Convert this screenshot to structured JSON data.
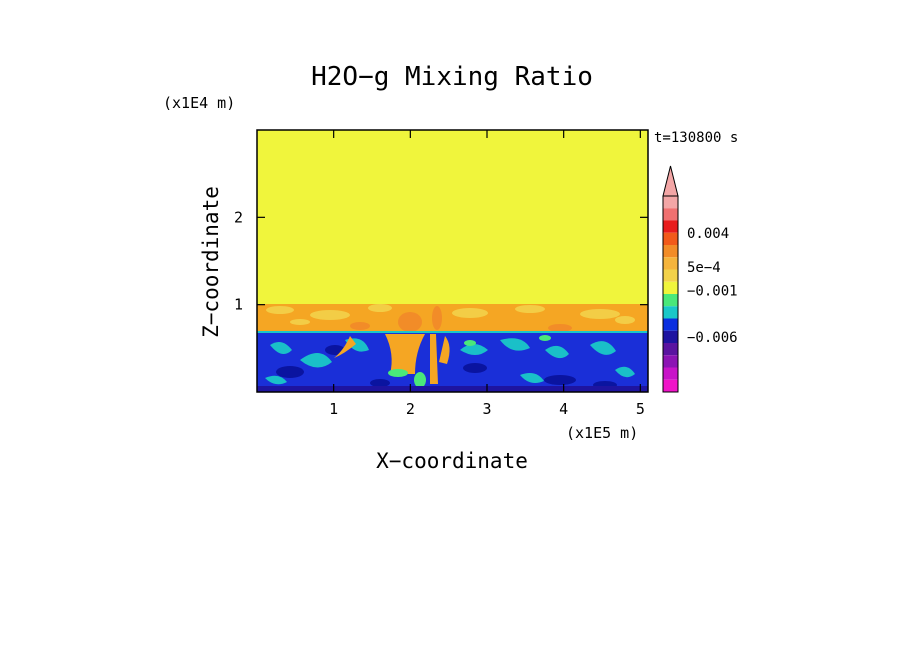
{
  "chart_data": {
    "type": "heatmap",
    "title": "H2O−g Mixing Ratio",
    "xlabel": "X−coordinate",
    "ylabel": "Z−coordinate",
    "x_scale_label": "(x1E5 m)",
    "y_scale_label": "(x1E4 m)",
    "time_label": "t=130800 s",
    "xlim": [
      0,
      5.1
    ],
    "ylim": [
      0,
      3.0
    ],
    "x_ticks": [
      1,
      2,
      3,
      4,
      5
    ],
    "y_ticks": [
      1,
      2
    ],
    "regions": [
      {
        "name": "upper",
        "z_range": [
          1.05,
          3.0
        ],
        "color": "#F0F53C"
      },
      {
        "name": "transition",
        "z_range": [
          0.72,
          1.05
        ],
        "color": "#F5A623"
      },
      {
        "name": "boundary-layer",
        "z_range": [
          0.0,
          0.72
        ],
        "color": "#1A2FD8"
      }
    ],
    "colorbar": {
      "labels": [
        "0.004",
        "5e−4",
        "−0.001",
        "−0.006"
      ],
      "colors": [
        "#F3A6A6",
        "#F07070",
        "#E81C1C",
        "#F25A1A",
        "#F28C28",
        "#F5B43C",
        "#F3D24A",
        "#F0F53C",
        "#4AE87A",
        "#1AC8C8",
        "#0A2FE0",
        "#1E14A0",
        "#5A14A0",
        "#8C14B4",
        "#C814C8",
        "#F014C8"
      ]
    }
  }
}
